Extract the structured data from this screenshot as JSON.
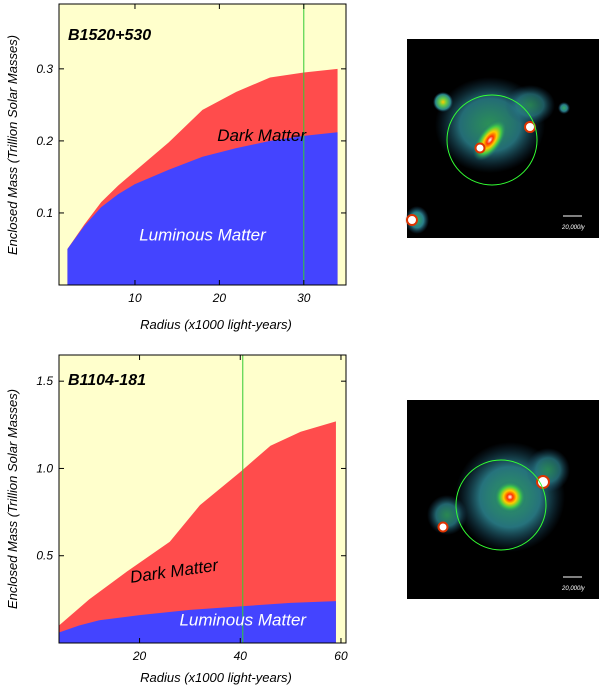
{
  "chart_data": [
    {
      "type": "area",
      "title": "B1520+530",
      "xlabel": "Radius (x1000 light-years)",
      "ylabel": "Enclosed Mass (Trillion Solar Masses)",
      "xlim": [
        1,
        35
      ],
      "ylim": [
        0,
        0.39
      ],
      "xticks": [
        10,
        20,
        30
      ],
      "yticks": [
        0.1,
        0.2,
        0.3
      ],
      "marker_x": 30,
      "marker_color": "#33cc33",
      "background_color": "#ffffcc",
      "series": [
        {
          "name": "Luminous Matter",
          "color": "#4444ff",
          "label_color": "#ffffff",
          "label_pos": [
            18,
            0.062
          ],
          "x": [
            2,
            4,
            6,
            8,
            10,
            14,
            18,
            22,
            26,
            30,
            34
          ],
          "y": [
            0.05,
            0.082,
            0.108,
            0.126,
            0.14,
            0.16,
            0.178,
            0.19,
            0.2,
            0.207,
            0.212
          ]
        },
        {
          "name": "Dark Matter",
          "color": "#ff4c4c",
          "label_color": "#000000",
          "label_pos": [
            25,
            0.2
          ],
          "x": [
            2,
            4,
            6,
            8,
            10,
            14,
            18,
            22,
            26,
            30,
            34
          ],
          "y": [
            0.05,
            0.084,
            0.115,
            0.138,
            0.158,
            0.198,
            0.243,
            0.268,
            0.288,
            0.295,
            0.3
          ]
        }
      ]
    },
    {
      "type": "area",
      "title": "B1104-181",
      "xlabel": "Radius (x1000 light-years)",
      "ylabel": "Enclosed Mass (Trillion Solar Masses)",
      "xlim": [
        4,
        61
      ],
      "ylim": [
        0,
        1.65
      ],
      "xticks": [
        20,
        40,
        60
      ],
      "yticks": [
        0.5,
        1.0,
        1.5
      ],
      "marker_x": 40.5,
      "marker_color": "#33cc33",
      "background_color": "#ffffcc",
      "series": [
        {
          "name": "Luminous Matter",
          "color": "#4444ff",
          "label_color": "#ffffff",
          "label_pos": [
            40.5,
            0.1
          ],
          "x": [
            4,
            8,
            12,
            20,
            30,
            40,
            50,
            59
          ],
          "y": [
            0.06,
            0.1,
            0.13,
            0.16,
            0.19,
            0.21,
            0.23,
            0.24
          ]
        },
        {
          "name": "Dark Matter",
          "color": "#ff4c4c",
          "label_color": "#000000",
          "label_pos": [
            27,
            0.38
          ],
          "x": [
            4,
            10,
            18,
            26,
            32,
            40,
            46,
            52,
            59
          ],
          "y": [
            0.1,
            0.25,
            0.42,
            0.58,
            0.79,
            0.98,
            1.13,
            1.21,
            1.27
          ]
        }
      ]
    }
  ],
  "images": [
    {
      "name": "b1520-lens-image",
      "scale_bar_label": "20,000ly"
    },
    {
      "name": "b1104-lens-image",
      "scale_bar_label": "20,000ly"
    }
  ]
}
